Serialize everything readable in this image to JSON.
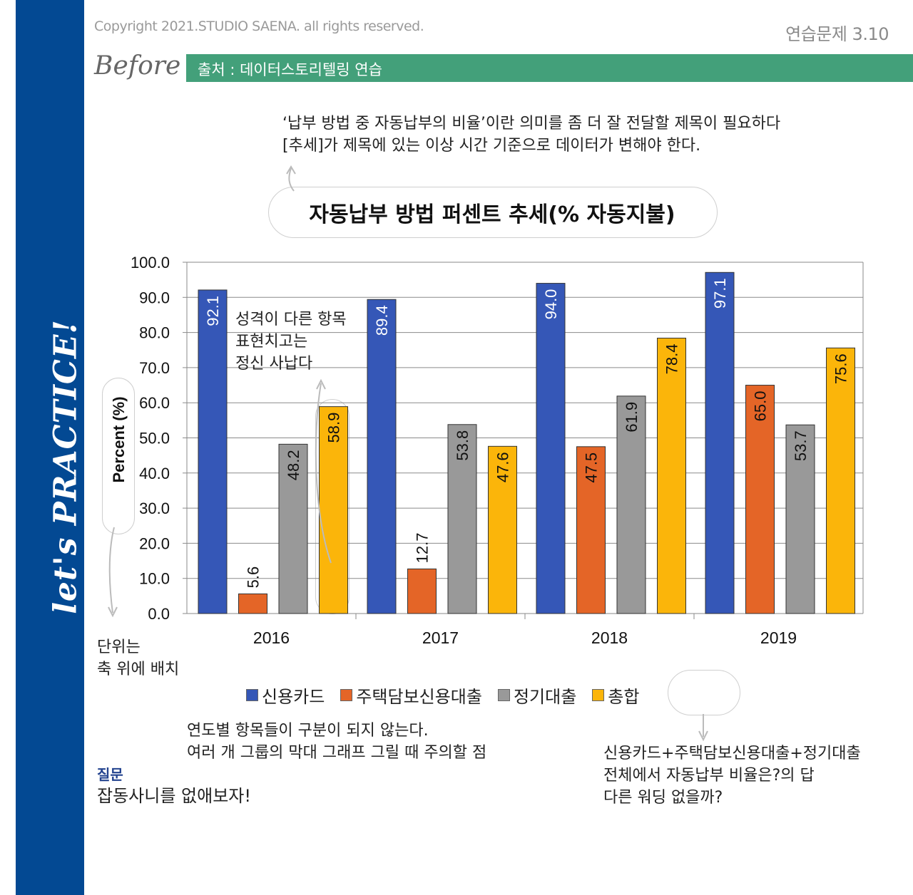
{
  "header": {
    "copyright": "Copyright 2021.STUDIO SAENA. all rights reserved.",
    "exercise_number": "연습문제 3.10",
    "before_label": "Before",
    "source": "출처 : 데이터스토리텔링 연습"
  },
  "sidebar": {
    "label": "let's PRACTICE!"
  },
  "annotations": {
    "top_line1": "‘납부 방법 중 자동납부의 비율’이란 의미를 좀 더 잘 전달할 제목이 필요하다",
    "top_line2": "[추세]가 제목에 있는 이상 시간 기준으로 데이터가 변해야 한다.",
    "middle_line1": "성격이 다른 항목",
    "middle_line2": "표현치고는",
    "middle_line3": "정신 사납다",
    "unit_line1": "단위는",
    "unit_line2": "축 위에 배치",
    "bottom_line1": "연도별 항목들이 구분이 되지 않는다.",
    "bottom_line2": "여러 개 그룹의 막대 그래프 그릴 때 주의할 점",
    "right_line1": "신용카드+주택담보신용대출+정기대출",
    "right_line2": "전체에서 자동납부 비율은?의 답",
    "right_line3": "다른 워딩 없을까?",
    "question_label": "질문",
    "question_text": "잡동사니를 없애보자!"
  },
  "chart_data": {
    "type": "bar",
    "title": "자동납부 방법 퍼센트 추세(% 자동지불)",
    "ylabel": "Percent (%)",
    "xlabel": "",
    "categories": [
      "2016",
      "2017",
      "2018",
      "2019"
    ],
    "ylim": [
      0,
      100
    ],
    "yticks": [
      "0.0",
      "10.0",
      "20.0",
      "30.0",
      "40.0",
      "50.0",
      "60.0",
      "70.0",
      "80.0",
      "90.0",
      "100.0"
    ],
    "grid": true,
    "legend_position": "bottom",
    "series": [
      {
        "name": "신용카드",
        "color": "#3557b7",
        "values": [
          92.1,
          89.4,
          94.0,
          97.1
        ],
        "labels": [
          "92.1",
          "89.4",
          "94.0",
          "97.1"
        ]
      },
      {
        "name": "주택담보신용대출",
        "color": "#e46527",
        "values": [
          5.6,
          12.7,
          47.5,
          65.0
        ],
        "labels": [
          "5.6",
          "12.7",
          "47.5",
          "65.0"
        ]
      },
      {
        "name": "정기대출",
        "color": "#999999",
        "values": [
          48.2,
          53.8,
          61.9,
          53.7
        ],
        "labels": [
          "48.2",
          "53.8",
          "61.9",
          "53.7"
        ]
      },
      {
        "name": "총합",
        "color": "#fbb50a",
        "values": [
          58.9,
          47.6,
          78.4,
          75.6
        ],
        "labels": [
          "58.9",
          "47.6",
          "78.4",
          "75.6"
        ]
      }
    ]
  }
}
